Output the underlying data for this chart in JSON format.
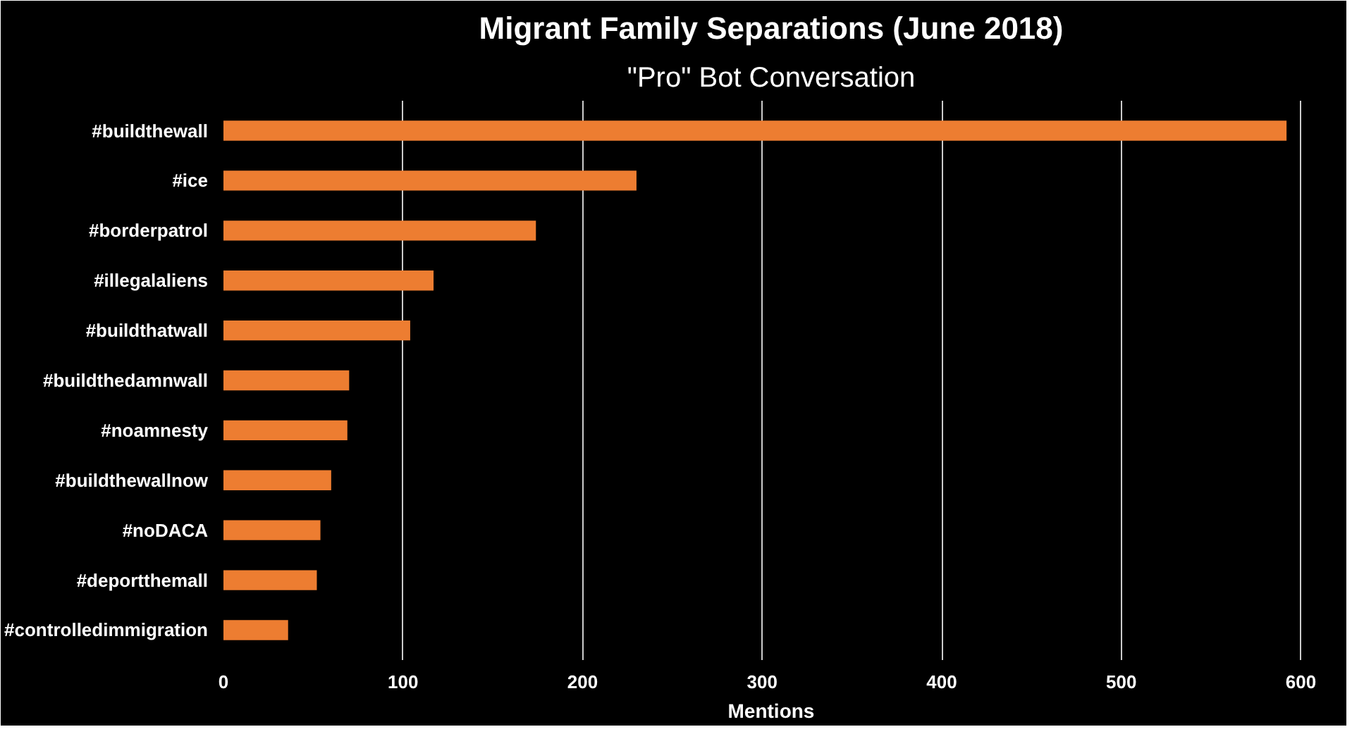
{
  "chart_data": {
    "type": "bar",
    "orientation": "horizontal",
    "title": "Migrant Family Separations (June 2018)",
    "subtitle": "\"Pro\" Bot Conversation",
    "xlabel": "Mentions",
    "categories": [
      "#buildthewall",
      "#ice",
      "#borderpatrol",
      "#illegalaliens",
      "#buildthatwall",
      "#buildthedamnwall",
      "#noamnesty",
      "#buildthewallnow",
      "#noDACA",
      "#deportthemall",
      "#controlledimmigration"
    ],
    "values": [
      592,
      230,
      174,
      117,
      104,
      70,
      69,
      60,
      54,
      52,
      36
    ],
    "color": "#ed7d31",
    "xlim": [
      0,
      610
    ],
    "xticks": [
      0,
      100,
      200,
      300,
      400,
      500,
      600
    ],
    "grid": "x"
  }
}
